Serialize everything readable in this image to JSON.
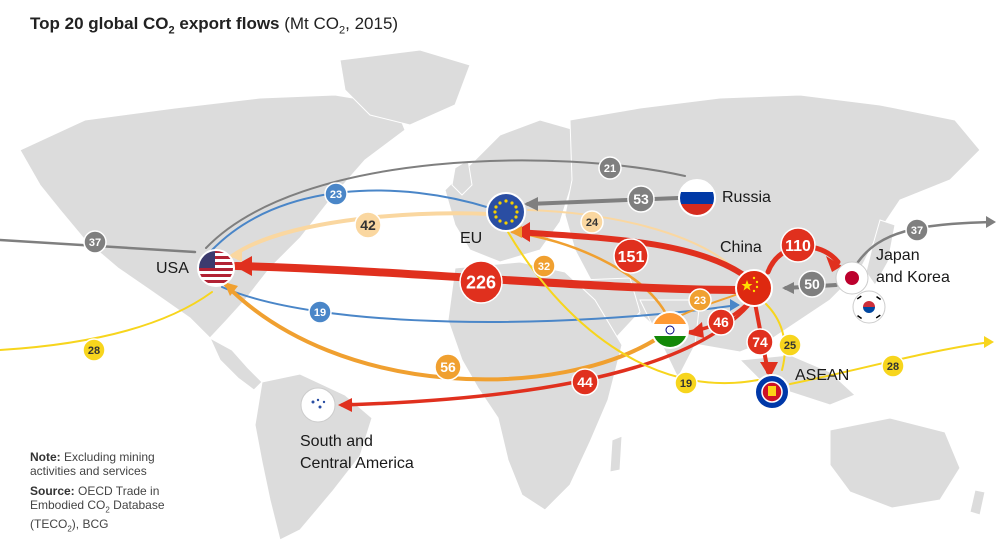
{
  "title": {
    "main_part1": "Top 20 global CO",
    "main_sub": "2",
    "main_part2": " export flows",
    "unit_part1": " (Mt CO",
    "unit_sub": "2",
    "unit_part2": ", 2015)"
  },
  "regions": {
    "usa": "USA",
    "eu": "EU",
    "russia": "Russia",
    "china": "China",
    "japan_korea_line1": "Japan",
    "japan_korea_line2": "and Korea",
    "asean": "ASEAN",
    "sca_line1": "South and",
    "sca_line2": "Central America"
  },
  "notes": {
    "note_label": "Note:",
    "note_text_line1": " Excluding mining",
    "note_text_line2": "activities and services",
    "source_label": "Source:",
    "source_line1": " OECD Trade in",
    "source_line2_part1": "Embodied CO",
    "source_line2_sub": "2",
    "source_line2_part2": " Database",
    "source_line3_part1": "(TECO",
    "source_line3_sub": "2",
    "source_line3_part2": "), BCG"
  },
  "colors": {
    "red": "#e0301e",
    "orange": "#f0a030",
    "light_orange": "#fad7a0",
    "gray": "#7f7f7f",
    "blue": "#4a86c8",
    "yellow": "#f7d51d",
    "land": "#dcdcdc"
  },
  "chart_data": {
    "type": "flow-map",
    "unit": "Mt CO2",
    "year": 2015,
    "flows": [
      {
        "from": "China",
        "to": "USA",
        "value": 226,
        "color": "red"
      },
      {
        "from": "China",
        "to": "EU",
        "value": 151,
        "color": "red"
      },
      {
        "from": "China",
        "to": "Japan and Korea",
        "value": 110,
        "color": "red"
      },
      {
        "from": "China",
        "to": "ASEAN",
        "value": 74,
        "color": "red"
      },
      {
        "from": "China",
        "to": "India",
        "value": 46,
        "color": "red"
      },
      {
        "from": "China",
        "to": "South and Central America",
        "value": 44,
        "color": "red"
      },
      {
        "from": "Russia",
        "to": "EU",
        "value": 53,
        "color": "gray"
      },
      {
        "from": "Japan and Korea",
        "to": "China",
        "value": 50,
        "color": "gray"
      },
      {
        "from": "Japan and Korea",
        "to": "",
        "value": 37,
        "color": "gray"
      },
      {
        "from": "",
        "to": "USA",
        "value": 37,
        "color": "gray"
      },
      {
        "from": "Russia",
        "to": "USA",
        "value": 21,
        "color": "gray"
      },
      {
        "from": "India",
        "to": "USA",
        "value": 56,
        "color": "orange"
      },
      {
        "from": "India",
        "to": "EU",
        "value": 32,
        "color": "orange"
      },
      {
        "from": "India",
        "to": "China",
        "value": 23,
        "color": "orange"
      },
      {
        "from": "EU",
        "to": "USA",
        "value": 42,
        "color": "light_orange"
      },
      {
        "from": "China",
        "to": "EU",
        "value": 24,
        "color": "light_orange"
      },
      {
        "from": "EU",
        "to": "USA",
        "value": 23,
        "color": "blue"
      },
      {
        "from": "USA",
        "to": "China",
        "value": 19,
        "color": "blue"
      },
      {
        "from": "ASEAN",
        "to": "",
        "value": 28,
        "color": "yellow"
      },
      {
        "from": "",
        "to": "USA",
        "value": 28,
        "color": "yellow"
      },
      {
        "from": "ASEAN",
        "to": "China",
        "value": 25,
        "color": "yellow"
      },
      {
        "from": "ASEAN",
        "to": "EU",
        "value": 19,
        "color": "yellow"
      }
    ]
  }
}
